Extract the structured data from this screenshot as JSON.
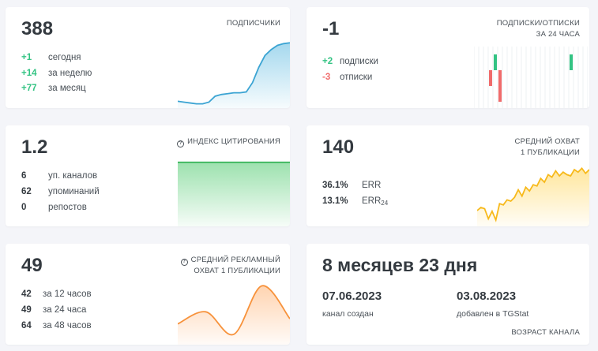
{
  "subscribers": {
    "value": "388",
    "caption": "ПОДПИСЧИКИ",
    "rows": [
      {
        "num": "+1",
        "label": "сегодня"
      },
      {
        "num": "+14",
        "label": "за неделю"
      },
      {
        "num": "+77",
        "label": "за месяц"
      }
    ],
    "series": [
      8,
      7,
      6,
      5,
      5,
      7,
      14,
      16,
      17,
      18,
      18,
      19,
      30,
      48,
      62,
      69,
      74,
      76,
      77
    ]
  },
  "subs_unsubs": {
    "value": "-1",
    "caption_line1": "ПОДПИСКИ/ОТПИСКИ",
    "caption_line2": "ЗА 24 ЧАСА",
    "rows": [
      {
        "num": "+2",
        "label": "подписки"
      },
      {
        "num": "-3",
        "label": "отписки"
      }
    ],
    "bars": [
      {
        "hour": 2,
        "value": 0
      },
      {
        "hour": 3,
        "value": -1
      },
      {
        "hour": 4,
        "value": 1
      },
      {
        "hour": 5,
        "value": -2
      },
      {
        "hour": 20,
        "value": 1
      }
    ],
    "colors": {
      "positive": "#33c383",
      "negative": "#f06b6b"
    }
  },
  "citation": {
    "value": "1.2",
    "caption": "ИНДЕКС ЦИТИРОВАНИЯ",
    "icon": "question-circle-icon",
    "rows": [
      {
        "num": "6",
        "label": "уп. каналов"
      },
      {
        "num": "62",
        "label": "упоминаний"
      },
      {
        "num": "0",
        "label": "репостов"
      }
    ],
    "series": [
      1.2,
      1.2,
      1.2,
      1.2,
      1.2,
      1.2,
      1.2,
      1.2
    ]
  },
  "reach": {
    "value": "140",
    "caption_line1": "СРЕДНИЙ ОХВАТ",
    "caption_line2": "1 ПУБЛИКАЦИИ",
    "rows": [
      {
        "num": "36.1%",
        "label": "ERR"
      },
      {
        "num": "13.1%",
        "label": "ERR",
        "sub": "24"
      }
    ],
    "series": [
      95,
      100,
      98,
      82,
      94,
      80,
      106,
      104,
      112,
      110,
      116,
      128,
      118,
      132,
      126,
      136,
      134,
      146,
      140,
      152,
      148,
      158,
      150,
      156,
      152,
      150,
      160,
      156,
      162,
      154,
      160
    ]
  },
  "ad_reach": {
    "value": "49",
    "caption_line1": "СРЕДНИЙ РЕКЛАМНЫЙ",
    "caption_line2": "ОХВАТ 1 ПУБЛИКАЦИИ",
    "icon": "question-circle-icon",
    "rows": [
      {
        "num": "42",
        "label": "за 12 часов"
      },
      {
        "num": "49",
        "label": "за 24 часа"
      },
      {
        "num": "64",
        "label": "за 48 часов"
      }
    ],
    "series": [
      42,
      49,
      36,
      64,
      45
    ]
  },
  "age": {
    "value": "8 месяцев 23 дня",
    "created_date": "07.06.2023",
    "created_label": "канал создан",
    "added_date": "03.08.2023",
    "added_label": "добавлен в TGStat",
    "caption": "ВОЗРАСТ КАНАЛА"
  }
}
